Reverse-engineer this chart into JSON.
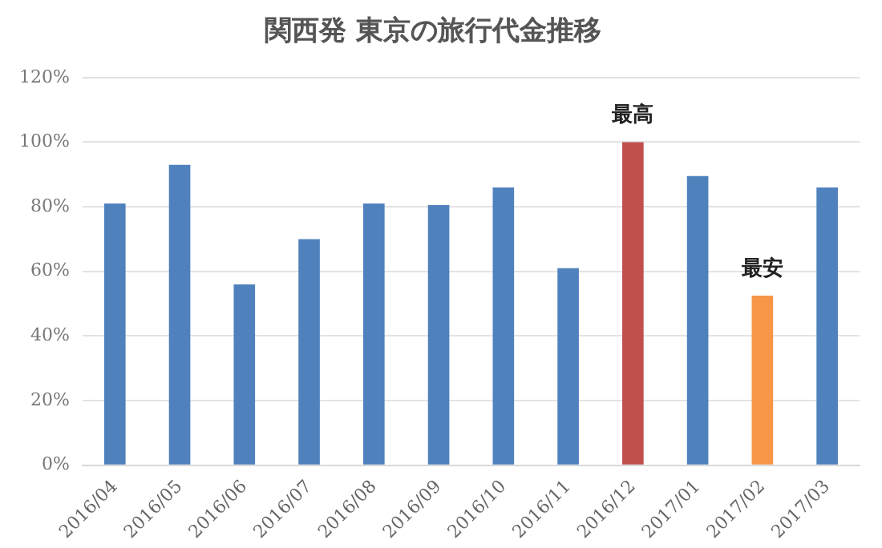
{
  "chart_data": {
    "type": "bar",
    "title": "関西発 東京の旅行代金推移",
    "categories": [
      "2016/04",
      "2016/05",
      "2016/06",
      "2016/07",
      "2016/08",
      "2016/09",
      "2016/10",
      "2016/11",
      "2016/12",
      "2017/01",
      "2017/02",
      "2017/03"
    ],
    "values": [
      81,
      93,
      56,
      70,
      81,
      80.5,
      86,
      61,
      100,
      89.5,
      52.5,
      86
    ],
    "colors": [
      "#4f81bd",
      "#4f81bd",
      "#4f81bd",
      "#4f81bd",
      "#4f81bd",
      "#4f81bd",
      "#4f81bd",
      "#4f81bd",
      "#c0504d",
      "#4f81bd",
      "#f79646",
      "#4f81bd"
    ],
    "ylim": [
      0,
      120
    ],
    "yticks": [
      {
        "value": 0,
        "label": "0%"
      },
      {
        "value": 20,
        "label": "20%"
      },
      {
        "value": 40,
        "label": "40%"
      },
      {
        "value": 60,
        "label": "60%"
      },
      {
        "value": 80,
        "label": "80%"
      },
      {
        "value": 100,
        "label": "100%"
      },
      {
        "value": 120,
        "label": "120%"
      }
    ],
    "grid": "y",
    "legend": false,
    "annotations": [
      {
        "text": "最高",
        "x": "2016/12",
        "y": 100
      },
      {
        "text": "最安",
        "x": "2017/02",
        "y": 52.5
      }
    ]
  }
}
